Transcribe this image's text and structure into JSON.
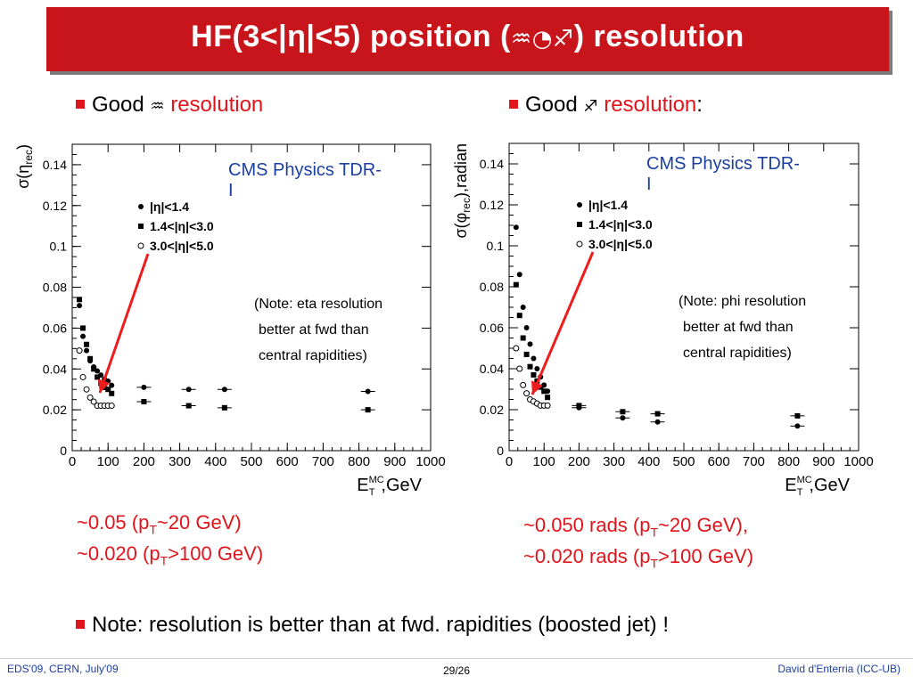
{
  "title": {
    "prefix": "HF",
    "range": "(3<|η|<5)",
    "rest": " position (",
    "symbols": "♒◔♐",
    "suffix": ") resolution"
  },
  "bullets": {
    "left": {
      "word": "Good",
      "symbol": "♒",
      "red": "resolution",
      "tail": ""
    },
    "right": {
      "word": "Good",
      "symbol": "♐",
      "red": "resolution",
      "tail": ":"
    },
    "note": "Note: resolution is better than at fwd. rapidities (boosted jet) !"
  },
  "results": {
    "left_line1": "~0.05 (p",
    "left_line1_sub": "T",
    "left_line1_end": "~20 GeV)",
    "left_line2": "~0.020 (p",
    "left_line2_sub": "T",
    "left_line2_end": ">100 GeV)",
    "right_line1": "~0.050 rads (p",
    "right_line1_sub": "T",
    "right_line1_end": "~20 GeV),",
    "right_line2": "~0.020 rads (p",
    "right_line2_sub": "T",
    "right_line2_end": ">100 GeV)"
  },
  "footer": {
    "left": "EDS'09, CERN, July'09",
    "center": "29/26",
    "right": "David d'Enterria (ICC-UB)"
  },
  "colors": {
    "accent": "#c8141b",
    "bullet": "#e0141b",
    "annotation_blue": "#1b3fa0"
  },
  "chart_data": [
    {
      "type": "scatter",
      "ylabel": "σ(η_rec)",
      "xlabel": "E_T^MC,GeV",
      "ylim": [
        0,
        0.15
      ],
      "xlim": [
        0,
        1000
      ],
      "xticks": [
        "0",
        "100",
        "200",
        "300",
        "400",
        "500",
        "600",
        "700",
        "800",
        "900",
        "1000"
      ],
      "yticks": [
        "0",
        "0.02",
        "0.04",
        "0.06",
        "0.08",
        "0.1",
        "0.12",
        "0.14"
      ],
      "annotation": "CMS Physics TDR-I",
      "note_lines": [
        "(Note: eta resolution",
        "better at fwd than",
        "central rapidities)"
      ],
      "legend": [
        "|η|<1.4",
        "1.4<|η|<3.0",
        "3.0<|η|<5.0"
      ],
      "series": [
        {
          "name": "|η|<1.4",
          "marker": "circle",
          "x": [
            20,
            30,
            40,
            50,
            60,
            70,
            80,
            90,
            100,
            110,
            200,
            325,
            425,
            825
          ],
          "y": [
            0.071,
            0.056,
            0.049,
            0.044,
            0.041,
            0.039,
            0.037,
            0.035,
            0.034,
            0.032,
            0.031,
            0.03,
            0.03,
            0.029
          ]
        },
        {
          "name": "1.4<|η|<3.0",
          "marker": "square",
          "x": [
            20,
            30,
            40,
            50,
            60,
            70,
            80,
            90,
            100,
            110,
            200,
            325,
            425,
            825
          ],
          "y": [
            0.074,
            0.06,
            0.052,
            0.045,
            0.04,
            0.036,
            0.033,
            0.031,
            0.03,
            0.028,
            0.024,
            0.022,
            0.021,
            0.02
          ]
        },
        {
          "name": "3.0<|η|<5.0",
          "marker": "open-circle",
          "x": [
            20,
            30,
            40,
            50,
            60,
            70,
            80,
            90,
            100,
            110
          ],
          "y": [
            0.049,
            0.036,
            0.03,
            0.026,
            0.024,
            0.022,
            0.022,
            0.022,
            0.022,
            0.022
          ]
        }
      ]
    },
    {
      "type": "scatter",
      "ylabel": "σ(φ_rec),radian",
      "xlabel": "E_T^MC,GeV",
      "ylim": [
        0,
        0.15
      ],
      "xlim": [
        0,
        1000
      ],
      "xticks": [
        "0",
        "100",
        "200",
        "300",
        "400",
        "500",
        "600",
        "700",
        "800",
        "900",
        "1000"
      ],
      "yticks": [
        "0",
        "0.02",
        "0.04",
        "0.06",
        "0.08",
        "0.1",
        "0.12",
        "0.14"
      ],
      "annotation": "CMS Physics TDR-I",
      "note_lines": [
        "(Note: phi resolution",
        "better at fwd than",
        "central rapidities)"
      ],
      "legend": [
        "|η|<1.4",
        "1.4<|η|<3.0",
        "3.0<|η|<5.0"
      ],
      "series": [
        {
          "name": "|η|<1.4",
          "marker": "circle",
          "x": [
            20,
            30,
            40,
            50,
            60,
            70,
            80,
            90,
            100,
            110,
            200,
            325,
            425,
            825
          ],
          "y": [
            0.109,
            0.086,
            0.07,
            0.06,
            0.052,
            0.045,
            0.04,
            0.036,
            0.032,
            0.029,
            0.021,
            0.016,
            0.014,
            0.012
          ]
        },
        {
          "name": "1.4<|η|<3.0",
          "marker": "square",
          "x": [
            20,
            30,
            40,
            50,
            60,
            70,
            80,
            90,
            100,
            110,
            200,
            325,
            425,
            825
          ],
          "y": [
            0.081,
            0.066,
            0.055,
            0.047,
            0.041,
            0.037,
            0.034,
            0.031,
            0.029,
            0.026,
            0.022,
            0.019,
            0.018,
            0.017
          ]
        },
        {
          "name": "3.0<|η|<5.0",
          "marker": "open-circle",
          "x": [
            20,
            30,
            40,
            50,
            60,
            70,
            80,
            90,
            100,
            110
          ],
          "y": [
            0.05,
            0.04,
            0.032,
            0.028,
            0.025,
            0.024,
            0.023,
            0.022,
            0.022,
            0.022
          ]
        }
      ]
    }
  ]
}
